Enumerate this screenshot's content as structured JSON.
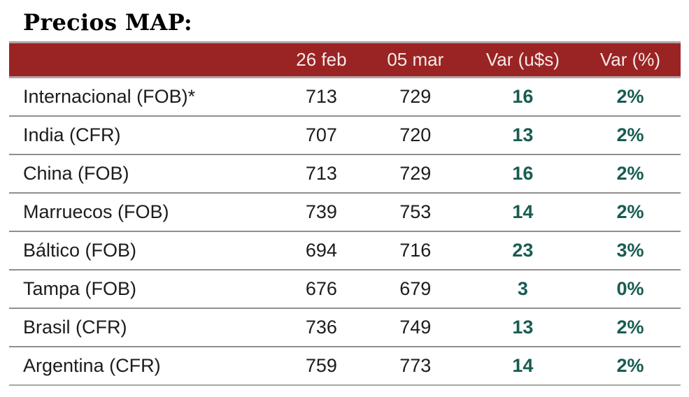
{
  "title": "Precios MAP:",
  "colors": {
    "header_bg": "#9a2423",
    "header_text": "#f5eaea",
    "var_text": "#175c52",
    "body_text": "#1c1c1c",
    "row_divider": "#8f8f8f",
    "header_border": "#b3a4a4"
  },
  "table": {
    "columns": [
      "",
      "26 feb",
      "05 mar",
      "Var (u$s)",
      "Var (%)"
    ],
    "rows": [
      {
        "label": "Internacional (FOB)*",
        "feb26": "713",
        "mar05": "729",
        "var_usd": "16",
        "var_pct": "2%"
      },
      {
        "label": "India (CFR)",
        "feb26": "707",
        "mar05": "720",
        "var_usd": "13",
        "var_pct": "2%"
      },
      {
        "label": "China (FOB)",
        "feb26": "713",
        "mar05": "729",
        "var_usd": "16",
        "var_pct": "2%"
      },
      {
        "label": "Marruecos (FOB)",
        "feb26": "739",
        "mar05": "753",
        "var_usd": "14",
        "var_pct": "2%"
      },
      {
        "label": "Báltico (FOB)",
        "feb26": "694",
        "mar05": "716",
        "var_usd": "23",
        "var_pct": "3%"
      },
      {
        "label": "Tampa (FOB)",
        "feb26": "676",
        "mar05": "679",
        "var_usd": "3",
        "var_pct": "0%"
      },
      {
        "label": "Brasil (CFR)",
        "feb26": "736",
        "mar05": "749",
        "var_usd": "13",
        "var_pct": "2%"
      },
      {
        "label": "Argentina (CFR)",
        "feb26": "759",
        "mar05": "773",
        "var_usd": "14",
        "var_pct": "2%"
      }
    ]
  },
  "chart_data": {
    "type": "table",
    "title": "Precios MAP:",
    "columns": [
      "",
      "26 feb",
      "05 mar",
      "Var (u$s)",
      "Var (%)"
    ],
    "rows": [
      [
        "Internacional (FOB)*",
        713,
        729,
        16,
        "2%"
      ],
      [
        "India (CFR)",
        707,
        720,
        13,
        "2%"
      ],
      [
        "China (FOB)",
        713,
        729,
        16,
        "2%"
      ],
      [
        "Marruecos (FOB)",
        739,
        753,
        14,
        "2%"
      ],
      [
        "Báltico (FOB)",
        694,
        716,
        23,
        "3%"
      ],
      [
        "Tampa (FOB)",
        676,
        679,
        3,
        "0%"
      ],
      [
        "Brasil (CFR)",
        736,
        749,
        13,
        "2%"
      ],
      [
        "Argentina (CFR)",
        759,
        773,
        14,
        "2%"
      ]
    ]
  }
}
